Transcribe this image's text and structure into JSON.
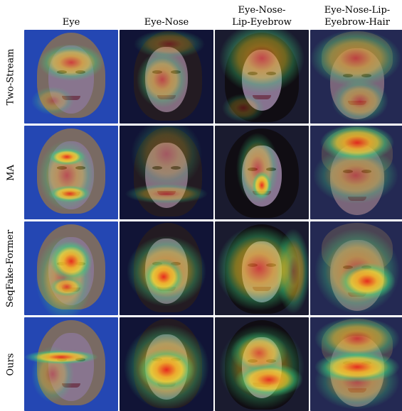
{
  "columns": [
    {
      "line1": "Eye",
      "line2": ""
    },
    {
      "line1": "Eye-Nose",
      "line2": ""
    },
    {
      "line1": "Eye-Nose-",
      "line2": "Lip-Eyebrow"
    },
    {
      "line1": "Eye-Nose-Lip-",
      "line2": "Eyebrow-Hair"
    }
  ],
  "rows": [
    {
      "label": "Two-Stream"
    },
    {
      "label": "MA"
    },
    {
      "label": "SeqFake-Former"
    },
    {
      "label": "Ours"
    }
  ],
  "colors": {
    "heat_red": "#e8281c",
    "heat_yellow": "#f4e032",
    "heat_green": "#3fd07a",
    "heat_cyan": "#3fb6ff",
    "overlay_blue": "#1e3ed2"
  }
}
